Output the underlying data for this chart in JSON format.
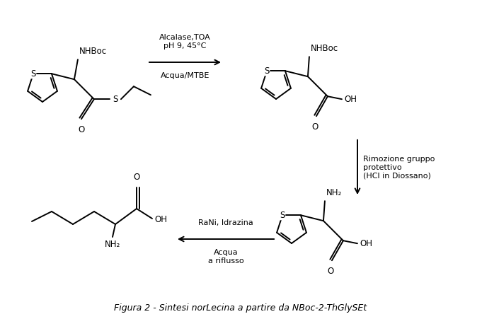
{
  "title": "Figura 2 - Sintesi norLecina a partire da NBoc-2-ThGlySEt",
  "background_color": "#ffffff",
  "line_color": "#000000",
  "text_color": "#000000",
  "figsize": [
    6.81,
    4.51
  ],
  "dpi": 100,
  "arrow1_label_top": "Alcalase,TOA\npH 9, 45°C",
  "arrow1_label_bottom": "Acqua/MTBE",
  "arrow2_label": "Rimozione gruppo\nprotettivo\n(HCl in Diossano)",
  "arrow3_label_top": "RaNi, Idrazina",
  "arrow3_label_bottom": "Acqua\na riflusso"
}
